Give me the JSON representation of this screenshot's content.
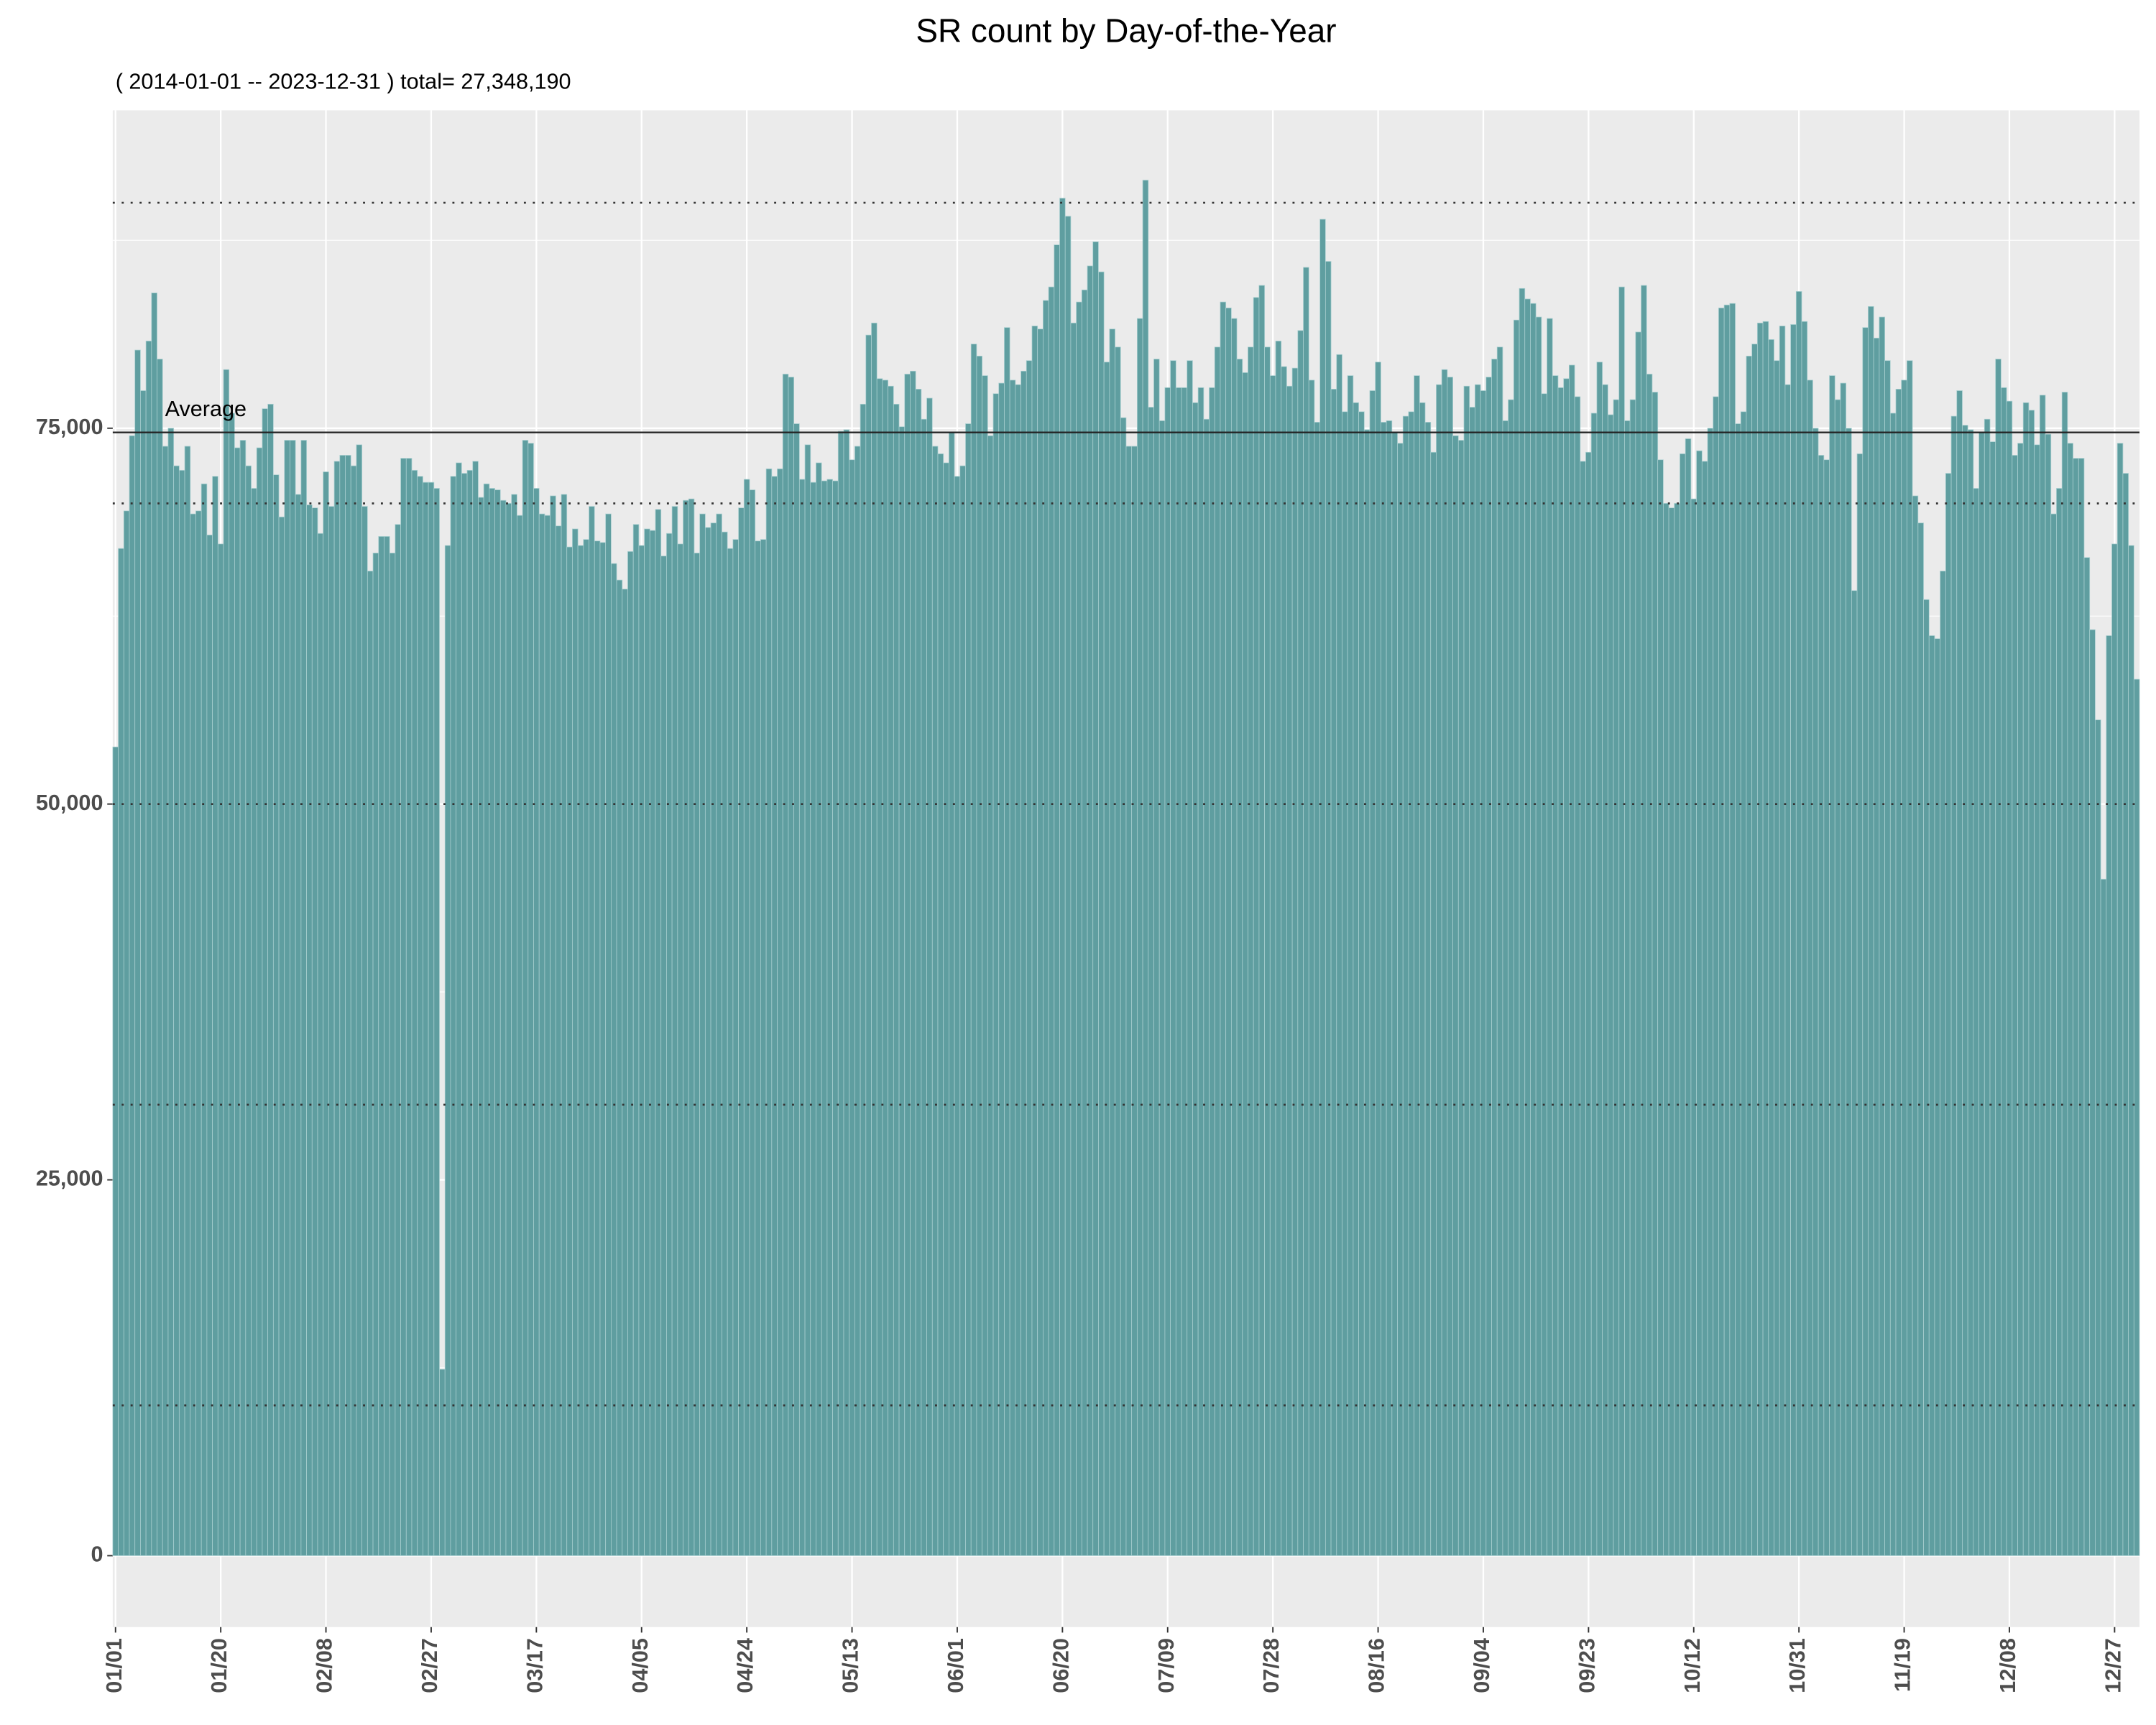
{
  "chart_data": {
    "type": "bar",
    "title": "SR count by Day-of-the-Year",
    "subtitle": "( 2014-01-01 -- 2023-12-31 ) total= 27,348,190",
    "color": "#5f9ea0",
    "grid": true,
    "categories": [
      "01/01",
      null,
      null,
      null,
      null,
      null,
      null,
      null,
      null,
      null,
      null,
      null,
      null,
      null,
      null,
      null,
      null,
      null,
      null,
      "01/20",
      null,
      null,
      null,
      null,
      null,
      null,
      null,
      null,
      null,
      null,
      null,
      null,
      null,
      null,
      null,
      null,
      null,
      null,
      "02/08",
      null,
      null,
      null,
      null,
      null,
      null,
      null,
      null,
      null,
      null,
      null,
      null,
      null,
      null,
      null,
      null,
      null,
      null,
      "02/27",
      null,
      null,
      null,
      null,
      null,
      null,
      null,
      null,
      null,
      null,
      null,
      null,
      null,
      null,
      null,
      null,
      null,
      null,
      "03/17",
      null,
      null,
      null,
      null,
      null,
      null,
      null,
      null,
      null,
      null,
      null,
      null,
      null,
      null,
      null,
      null,
      null,
      null,
      "04/05",
      null,
      null,
      null,
      null,
      null,
      null,
      null,
      null,
      null,
      null,
      null,
      null,
      null,
      null,
      null,
      null,
      null,
      null,
      "04/24",
      null,
      null,
      null,
      null,
      null,
      null,
      null,
      null,
      null,
      null,
      null,
      null,
      null,
      null,
      null,
      null,
      null,
      null,
      "05/13",
      null,
      null,
      null,
      null,
      null,
      null,
      null,
      null,
      null,
      null,
      null,
      null,
      null,
      null,
      null,
      null,
      null,
      null,
      "06/01",
      null,
      null,
      null,
      null,
      null,
      null,
      null,
      null,
      null,
      null,
      null,
      null,
      null,
      null,
      null,
      null,
      null,
      null,
      "06/20",
      null,
      null,
      null,
      null,
      null,
      null,
      null,
      null,
      null,
      null,
      null,
      null,
      null,
      null,
      null,
      null,
      null,
      null,
      "07/09",
      null,
      null,
      null,
      null,
      null,
      null,
      null,
      null,
      null,
      null,
      null,
      null,
      null,
      null,
      null,
      null,
      null,
      null,
      "07/28",
      null,
      null,
      null,
      null,
      null,
      null,
      null,
      null,
      null,
      null,
      null,
      null,
      null,
      null,
      null,
      null,
      null,
      null,
      "08/16",
      null,
      null,
      null,
      null,
      null,
      null,
      null,
      null,
      null,
      null,
      null,
      null,
      null,
      null,
      null,
      null,
      null,
      null,
      "09/04",
      null,
      null,
      null,
      null,
      null,
      null,
      null,
      null,
      null,
      null,
      null,
      null,
      null,
      null,
      null,
      null,
      null,
      null,
      "09/23",
      null,
      null,
      null,
      null,
      null,
      null,
      null,
      null,
      null,
      null,
      null,
      null,
      null,
      null,
      null,
      null,
      null,
      null,
      "10/12",
      null,
      null,
      null,
      null,
      null,
      null,
      null,
      null,
      null,
      null,
      null,
      null,
      null,
      null,
      null,
      null,
      null,
      null,
      "10/31",
      null,
      null,
      null,
      null,
      null,
      null,
      null,
      null,
      null,
      null,
      null,
      null,
      null,
      null,
      null,
      null,
      null,
      null,
      "11/19",
      null,
      null,
      null,
      null,
      null,
      null,
      null,
      null,
      null,
      null,
      null,
      null,
      null,
      null,
      null,
      null,
      null,
      null,
      "12/08",
      null,
      null,
      null,
      null,
      null,
      null,
      null,
      null,
      null,
      null,
      null,
      null,
      null,
      null,
      null,
      null,
      null,
      null,
      "12/27",
      null,
      null,
      null,
      null
    ],
    "values": [
      53800,
      67000,
      69500,
      74500,
      80200,
      77500,
      80800,
      84000,
      79600,
      73800,
      75000,
      72500,
      72200,
      73800,
      69300,
      69500,
      71300,
      67900,
      71800,
      67300,
      78900,
      76000,
      73700,
      74200,
      72500,
      71000,
      73700,
      76300,
      76600,
      71900,
      69100,
      74200,
      74200,
      70600,
      74200,
      69900,
      69700,
      68000,
      72100,
      69800,
      72800,
      73200,
      73200,
      72500,
      73900,
      69800,
      65500,
      66700,
      67800,
      67800,
      66700,
      68600,
      73000,
      73000,
      72200,
      71800,
      71400,
      71400,
      71000,
      12400,
      67200,
      71800,
      72700,
      72000,
      72200,
      72800,
      70400,
      71300,
      71000,
      70900,
      70200,
      70000,
      70600,
      69200,
      74200,
      74000,
      71000,
      69300,
      69200,
      70500,
      68500,
      70600,
      67100,
      68300,
      67200,
      67600,
      69800,
      67500,
      67400,
      69300,
      66000,
      64900,
      64300,
      66800,
      68600,
      67200,
      68300,
      68200,
      69600,
      66500,
      68000,
      69800,
      67300,
      70200,
      70300,
      66700,
      69300,
      68400,
      68700,
      69300,
      68100,
      67000,
      67600,
      69700,
      71600,
      70900,
      67500,
      67600,
      72300,
      71800,
      72300,
      78600,
      78400,
      75300,
      71600,
      73900,
      71400,
      72700,
      71500,
      71600,
      71500,
      74800,
      74900,
      72900,
      73800,
      76600,
      81200,
      82000,
      78300,
      78200,
      77800,
      76600,
      75100,
      78600,
      78800,
      77600,
      75600,
      77000,
      73800,
      73300,
      72700,
      74700,
      71800,
      72500,
      75300,
      80600,
      79800,
      78500,
      74500,
      77300,
      78000,
      81700,
      78200,
      77900,
      78800,
      79500,
      81800,
      81600,
      83500,
      84400,
      87200,
      90300,
      89100,
      82000,
      83400,
      84200,
      85800,
      87400,
      85400,
      79400,
      81600,
      80400,
      75700,
      73800,
      73800,
      82300,
      91500,
      76400,
      79600,
      75500,
      77700,
      79500,
      77700,
      77700,
      79500,
      76700,
      77700,
      75600,
      77700,
      80400,
      83400,
      83000,
      82300,
      79600,
      78700,
      80400,
      83700,
      84500,
      80400,
      78500,
      80800,
      79100,
      77800,
      79000,
      81500,
      85700,
      78200,
      75400,
      88900,
      86100,
      77600,
      79900,
      76100,
      78500,
      76700,
      76100,
      74900,
      77500,
      79400,
      75400,
      75500,
      74700,
      74000,
      75800,
      76100,
      78500,
      76700,
      75400,
      73400,
      77900,
      78900,
      78400,
      74500,
      74200,
      77800,
      76400,
      77900,
      77500,
      78400,
      79600,
      80400,
      75500,
      76900,
      82200,
      84300,
      83600,
      83300,
      82400,
      77300,
      82300,
      78500,
      77700,
      78300,
      79200,
      77100,
      72800,
      73400,
      76000,
      79400,
      77900,
      75900,
      76900,
      84400,
      75500,
      76900,
      81400,
      84500,
      78600,
      77400,
      72900,
      70000,
      69700,
      70000,
      73300,
      74300,
      70300,
      73500,
      72800,
      75000,
      77100,
      83000,
      83200,
      83300,
      75300,
      76100,
      79800,
      80600,
      82000,
      82100,
      80900,
      79500,
      81800,
      77900,
      81900,
      84100,
      82100,
      78200,
      75000,
      73200,
      72900,
      78500,
      76900,
      78000,
      75000,
      64200,
      73300,
      81700,
      83100,
      81000,
      82400,
      79500,
      76000,
      77600,
      78200,
      79500,
      70500,
      68700,
      63600,
      61200,
      61000,
      65500,
      72000,
      75800,
      77500,
      75200,
      74900,
      71000,
      74700,
      75600,
      74100,
      79600,
      77700,
      76800,
      73200,
      74000,
      76700,
      76200,
      73900,
      77200,
      74600,
      69300,
      71000,
      77400,
      74000,
      73000,
      73000,
      66400,
      61600,
      55600,
      45000,
      61200,
      67300,
      74000,
      72000,
      67200,
      58300
    ],
    "ylim": [
      -4750,
      96150
    ],
    "yticks": [
      0,
      {
        "value": 25000,
        "label": "25,000"
      },
      {
        "value": 50000,
        "label": "50,000"
      },
      {
        "value": 75000,
        "label": "75,000"
      }
    ],
    "yminor": [
      12500,
      37500,
      62500,
      87500
    ],
    "average": {
      "value": 74722,
      "label": "Average"
    },
    "reference_lines": [
      10000,
      30000,
      50000,
      70000,
      90000
    ]
  }
}
